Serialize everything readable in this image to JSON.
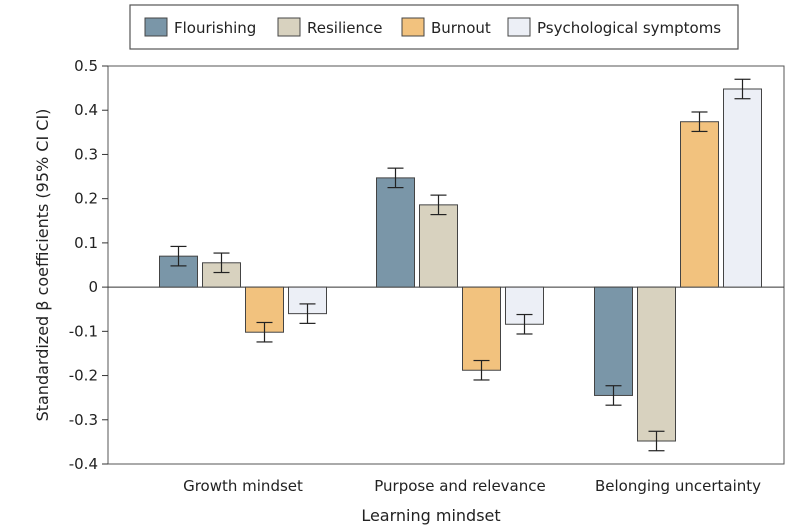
{
  "chart_data": {
    "type": "bar",
    "title": "",
    "xlabel": "Learning mindset",
    "ylabel": "Standardized β coefficients (95% CI CI)",
    "ylim": [
      -0.4,
      0.5
    ],
    "yticks": [
      0.5,
      0.4,
      0.3,
      0.2,
      0.1,
      0,
      -0.1,
      -0.2,
      -0.3,
      -0.4
    ],
    "ytick_labels": [
      "0.5",
      "0.4",
      "0.3",
      "0.2",
      "0.1",
      "0",
      "-0.1",
      "-0.2",
      "-0.3",
      "-0.4"
    ],
    "categories": [
      "Growth mindset",
      "Purpose and relevance",
      "Belonging uncertainty"
    ],
    "legend_position": "top",
    "series": [
      {
        "name": "Flourishing",
        "color": "#7a96a8",
        "values": [
          0.07,
          0.247,
          -0.245
        ],
        "ci_low": [
          0.048,
          0.225,
          -0.267
        ],
        "ci_high": [
          0.092,
          0.269,
          -0.223
        ]
      },
      {
        "name": "Resilience",
        "color": "#d8d2bf",
        "values": [
          0.055,
          0.186,
          -0.348
        ],
        "ci_low": [
          0.033,
          0.164,
          -0.37
        ],
        "ci_high": [
          0.077,
          0.208,
          -0.326
        ]
      },
      {
        "name": "Burnout",
        "color": "#f2c27e",
        "values": [
          -0.102,
          -0.188,
          0.374
        ],
        "ci_low": [
          -0.124,
          -0.21,
          0.352
        ],
        "ci_high": [
          -0.08,
          -0.166,
          0.396
        ]
      },
      {
        "name": "Psychological symptoms",
        "color": "#eceff6",
        "values": [
          -0.06,
          -0.084,
          0.448
        ],
        "ci_low": [
          -0.082,
          -0.106,
          0.426
        ],
        "ci_high": [
          -0.038,
          -0.062,
          0.47
        ]
      }
    ]
  }
}
